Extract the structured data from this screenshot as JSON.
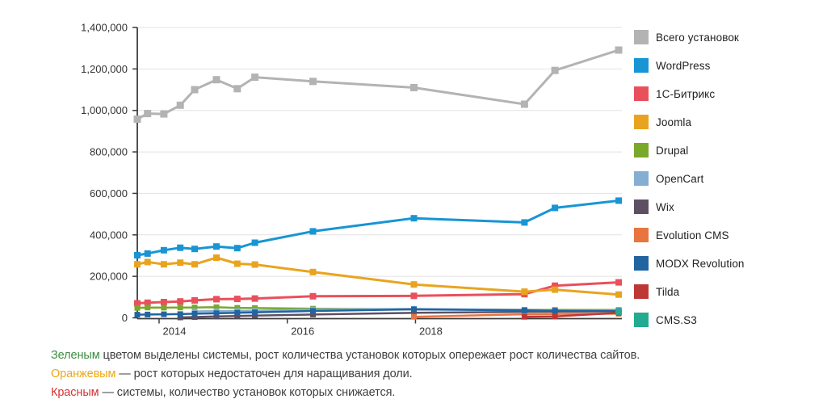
{
  "chart_data": {
    "type": "line",
    "title": "",
    "xlabel": "",
    "ylabel": "",
    "grid": "horizontal",
    "legend_position": "right",
    "xlim": [
      2013.66,
      2021.22
    ],
    "ylim": [
      0,
      1400000
    ],
    "x_ticks": [
      {
        "value": 2014,
        "label": "2014"
      },
      {
        "value": 2016,
        "label": "2016"
      },
      {
        "value": 2018,
        "label": "2018"
      }
    ],
    "y_ticks": [
      0,
      200000,
      400000,
      600000,
      800000,
      1000000,
      1200000,
      1400000
    ],
    "x": [
      2013.66,
      2013.82,
      2014.075,
      2014.33,
      2014.555,
      2014.895,
      2015.22,
      2015.495,
      2016.4,
      2017.975,
      2019.7,
      2020.175,
      2021.17
    ],
    "series": [
      {
        "key": "total",
        "name": "Всего установок",
        "color": "#b3b3b3",
        "line_width": 3,
        "marker_size": 9,
        "values": [
          958000,
          985000,
          983000,
          1025000,
          1100000,
          1148000,
          1105000,
          1160000,
          1140000,
          1110000,
          1030000,
          1193000,
          1291000
        ]
      },
      {
        "key": "wordpress",
        "name": "WordPress",
        "color": "#1795d4",
        "line_width": 3,
        "marker_size": 8,
        "values": [
          302000,
          310000,
          326000,
          338000,
          332000,
          344000,
          336000,
          362000,
          417000,
          480000,
          460000,
          530000,
          565000
        ]
      },
      {
        "key": "bitrix",
        "name": "1С-Битрикс",
        "color": "#e9505c",
        "line_width": 3,
        "marker_size": 8,
        "values": [
          70000,
          73000,
          76000,
          79000,
          84000,
          90000,
          91000,
          93000,
          104000,
          106000,
          114000,
          155000,
          171000
        ]
      },
      {
        "key": "joomla",
        "name": "Joomla",
        "color": "#e9a41f",
        "line_width": 3,
        "marker_size": 8,
        "values": [
          258000,
          269000,
          258000,
          266000,
          258000,
          290000,
          261000,
          257000,
          221000,
          161000,
          126000,
          136000,
          112000
        ]
      },
      {
        "key": "drupal",
        "name": "Drupal",
        "color": "#79a82a",
        "line_width": 2.5,
        "marker_size": 7,
        "values": [
          48000,
          50000,
          49000,
          50000,
          50000,
          51000,
          48000,
          47000,
          44000,
          41000,
          39000,
          38000,
          38000
        ]
      },
      {
        "key": "opencart",
        "name": "OpenCart",
        "color": "#84aed3",
        "line_width": 2.5,
        "marker_size": 7,
        "values": [
          null,
          null,
          null,
          null,
          31000,
          32000,
          33000,
          34000,
          40000,
          43000,
          38000,
          36000,
          36000
        ]
      },
      {
        "key": "wix",
        "name": "Wix",
        "color": "#5e4f63",
        "line_width": 2.5,
        "marker_size": 7,
        "values": [
          null,
          null,
          null,
          2000,
          4000,
          7000,
          9000,
          11000,
          16000,
          24000,
          29000,
          30000,
          31000
        ]
      },
      {
        "key": "evolution-cms",
        "name": "Evolution CMS",
        "color": "#e87440",
        "line_width": 2.5,
        "marker_size": 7,
        "values": [
          null,
          null,
          null,
          null,
          null,
          null,
          null,
          null,
          null,
          5000,
          17000,
          19000,
          20000
        ]
      },
      {
        "key": "modx-revolution",
        "name": "MODX Revolution",
        "color": "#2264a0",
        "line_width": 2.5,
        "marker_size": 7,
        "values": [
          15000,
          16000,
          17000,
          18000,
          20000,
          22000,
          24000,
          26000,
          33000,
          41000,
          36000,
          34000,
          33000
        ]
      },
      {
        "key": "tilda",
        "name": "Tilda",
        "color": "#bd3737",
        "line_width": 2.5,
        "marker_size": 7,
        "values": [
          null,
          null,
          null,
          null,
          null,
          null,
          null,
          null,
          null,
          null,
          5000,
          7000,
          24000
        ]
      },
      {
        "key": "cms-s3",
        "name": "CMS.S3",
        "color": "#22ab91",
        "line_width": 2.5,
        "marker_size": 8,
        "values": [
          null,
          null,
          null,
          null,
          null,
          null,
          null,
          null,
          null,
          null,
          null,
          null,
          30000
        ]
      }
    ]
  },
  "notes": [
    {
      "lead": "Зеленым",
      "lead_color": "#3e8e41",
      "text": " цветом выделены системы, рост количества установок которых опережает рост количества сайтов."
    },
    {
      "lead": "Оранжевым",
      "lead_color": "#efa714",
      "text": " — рост которых недостаточен для наращивания доли."
    },
    {
      "lead": "Красным",
      "lead_color": "#d63333",
      "text": " — системы, количество установок которых снижается."
    }
  ]
}
